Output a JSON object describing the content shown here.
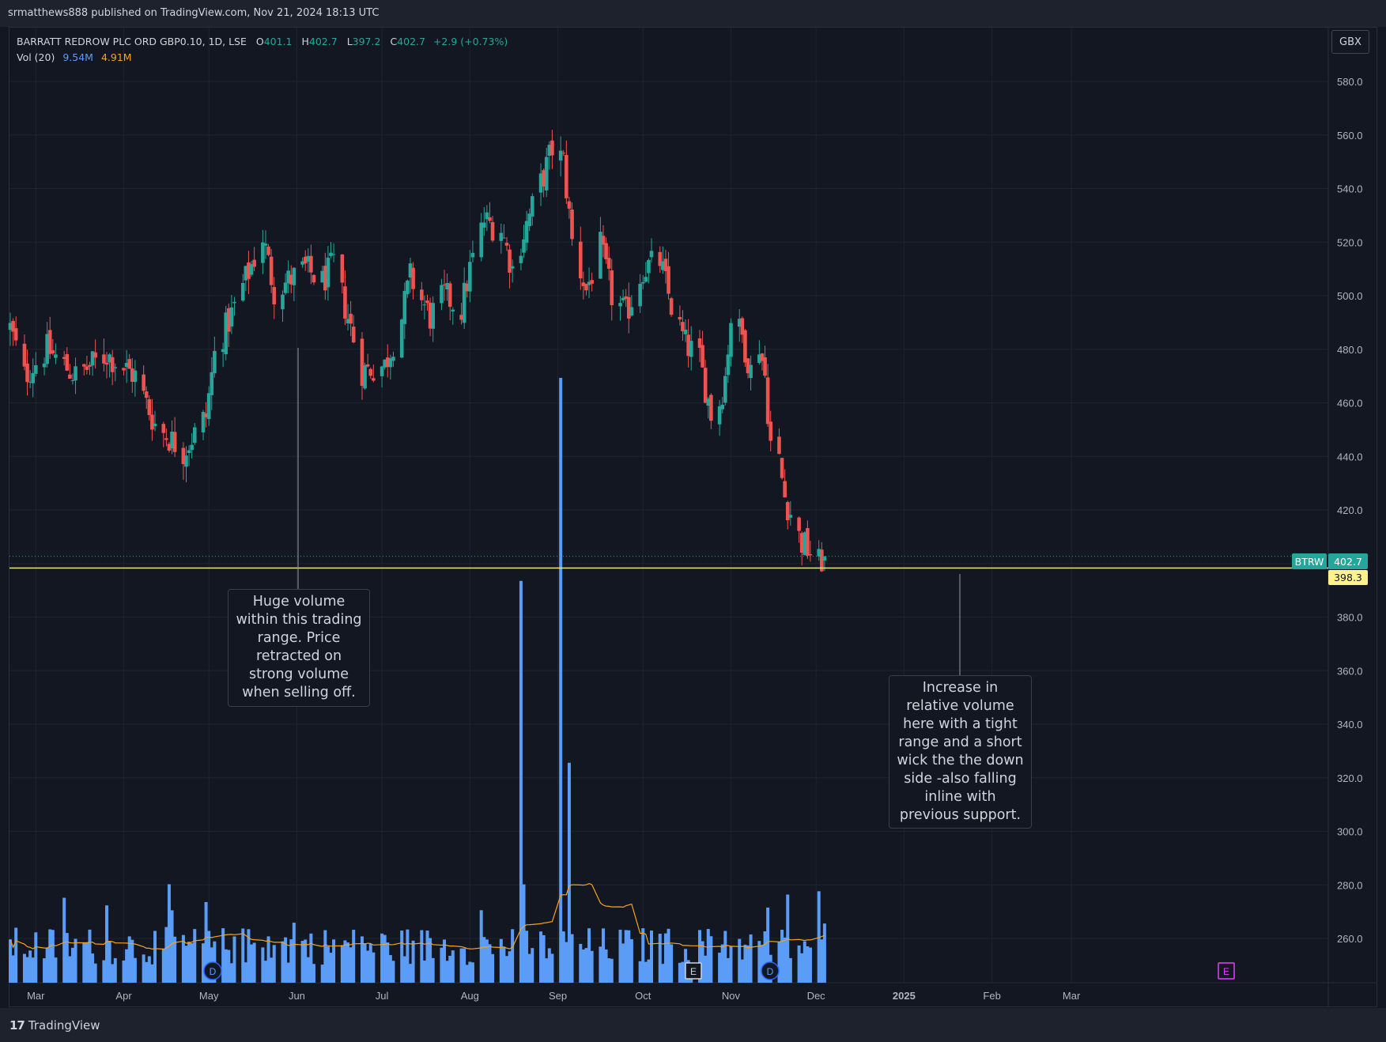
{
  "header": {
    "published": "srmatthews888 published on TradingView.com, Nov 21, 2024 18:13 UTC"
  },
  "legend": {
    "symbol": "BARRATT REDROW PLC ORD GBP0.10, 1D, LSE",
    "open_label": "O",
    "open": "401.1",
    "high_label": "H",
    "high": "402.7",
    "low_label": "L",
    "low": "397.2",
    "close_label": "C",
    "close": "402.7",
    "change": "+2.9 (+0.73%)",
    "vol_label": "Vol (20)",
    "vol": "9.54M",
    "vol_ma": "4.91M"
  },
  "currency": "GBX",
  "price_tags": {
    "ticker": "BTRW",
    "last": "402.7",
    "line": "398.3"
  },
  "annotations": {
    "left": [
      "Huge volume",
      "within this trading",
      "range. Price",
      "retracted on",
      "strong volume",
      "when selling off."
    ],
    "right": [
      "Increase in",
      "relative volume",
      "here with a tight",
      "range and a short",
      "wick the the down",
      "side -also falling",
      "inline with",
      "previous support."
    ]
  },
  "events": [
    {
      "type": "dividend",
      "label": "D"
    },
    {
      "type": "earnings",
      "label": "E"
    },
    {
      "type": "dividend",
      "label": "D"
    },
    {
      "type": "earnings",
      "label": "E"
    }
  ],
  "footer": {
    "brand": "TradingView"
  },
  "colors": {
    "background": "#131722",
    "up": "#26a69a",
    "down": "#ef5350",
    "volume": "#5b9cf6",
    "vol_ma": "#f7a21b",
    "hline": "#f0e68c",
    "earnings_future": "#e040fb"
  },
  "chart_data": {
    "type": "candlestick",
    "title": "BARRATT REDROW PLC ORD GBP0.10, 1D, LSE",
    "ylabel": "GBX",
    "y_ticks": [
      260,
      280,
      300,
      320,
      340,
      360,
      380,
      400,
      420,
      440,
      460,
      480,
      500,
      520,
      540,
      560,
      580
    ],
    "y_tick_labels": [
      "260.0",
      "280.0",
      "300.0",
      "320.0",
      "340.0",
      "360.0",
      "380.0",
      "400.0",
      "420.0",
      "440.0",
      "460.0",
      "480.0",
      "500.0",
      "520.0",
      "540.0",
      "560.0",
      "580.0"
    ],
    "x_tick_labels": [
      "Mar",
      "Apr",
      "May",
      "Jun",
      "Jul",
      "Aug",
      "Sep",
      "Oct",
      "Nov",
      "Dec",
      "2025",
      "Feb",
      "Mar"
    ],
    "horizontal_line": 398.3,
    "last_price": 402.7,
    "grid": true,
    "anchor_closes": [
      {
        "date": "2024-02-21",
        "close": 488
      },
      {
        "date": "2024-02-26",
        "close": 470
      },
      {
        "date": "2024-03-05",
        "close": 480
      },
      {
        "date": "2024-03-15",
        "close": 470
      },
      {
        "date": "2024-03-26",
        "close": 478
      },
      {
        "date": "2024-04-05",
        "close": 470
      },
      {
        "date": "2024-04-12",
        "close": 452
      },
      {
        "date": "2024-04-22",
        "close": 442
      },
      {
        "date": "2024-04-30",
        "close": 455
      },
      {
        "date": "2024-05-03",
        "close": 478
      },
      {
        "date": "2024-05-09",
        "close": 493
      },
      {
        "date": "2024-05-20",
        "close": 522
      },
      {
        "date": "2024-05-24",
        "close": 502
      },
      {
        "date": "2024-06-04",
        "close": 510
      },
      {
        "date": "2024-06-10",
        "close": 505
      },
      {
        "date": "2024-06-14",
        "close": 512
      },
      {
        "date": "2024-06-19",
        "close": 492
      },
      {
        "date": "2024-06-24",
        "close": 472
      },
      {
        "date": "2024-07-02",
        "close": 474
      },
      {
        "date": "2024-07-08",
        "close": 492
      },
      {
        "date": "2024-07-11",
        "close": 507
      },
      {
        "date": "2024-07-18",
        "close": 492
      },
      {
        "date": "2024-07-23",
        "close": 500
      },
      {
        "date": "2024-07-29",
        "close": 495
      },
      {
        "date": "2024-08-01",
        "close": 510
      },
      {
        "date": "2024-08-06",
        "close": 528
      },
      {
        "date": "2024-08-12",
        "close": 525
      },
      {
        "date": "2024-08-16",
        "close": 510
      },
      {
        "date": "2024-08-22",
        "close": 530
      },
      {
        "date": "2024-08-27",
        "close": 545
      },
      {
        "date": "2024-08-30",
        "close": 555
      },
      {
        "date": "2024-09-03",
        "close": 550
      },
      {
        "date": "2024-09-06",
        "close": 520
      },
      {
        "date": "2024-09-11",
        "close": 502
      },
      {
        "date": "2024-09-16",
        "close": 518
      },
      {
        "date": "2024-09-20",
        "close": 500
      },
      {
        "date": "2024-09-25",
        "close": 493
      },
      {
        "date": "2024-10-01",
        "close": 510
      },
      {
        "date": "2024-10-07",
        "close": 513
      },
      {
        "date": "2024-10-11",
        "close": 496
      },
      {
        "date": "2024-10-16",
        "close": 482
      },
      {
        "date": "2024-10-21",
        "close": 476
      },
      {
        "date": "2024-10-25",
        "close": 456
      },
      {
        "date": "2024-10-28",
        "close": 460
      },
      {
        "date": "2024-10-30",
        "close": 470
      },
      {
        "date": "2024-11-01",
        "close": 492
      },
      {
        "date": "2024-11-05",
        "close": 485
      },
      {
        "date": "2024-11-08",
        "close": 472
      },
      {
        "date": "2024-11-11",
        "close": 482
      },
      {
        "date": "2024-11-13",
        "close": 470
      },
      {
        "date": "2024-11-15",
        "close": 445
      },
      {
        "date": "2024-11-18",
        "close": 438
      },
      {
        "date": "2024-11-20",
        "close": 425
      },
      {
        "date": "2024-11-25",
        "close": 410
      },
      {
        "date": "2024-11-26",
        "close": 408
      },
      {
        "date": "2024-12-02",
        "close": 400
      },
      {
        "date": "2024-12-04",
        "close": 402.7
      }
    ],
    "volume_spikes_millions": [
      {
        "date": "2024-08-19",
        "volume": 9.5
      },
      {
        "date": "2024-09-02",
        "volume": 14.3
      },
      {
        "date": "2024-09-05",
        "volume": 5.2
      }
    ],
    "volume_baseline_millions": 1.2,
    "volume_ma_millions": 1.0
  }
}
